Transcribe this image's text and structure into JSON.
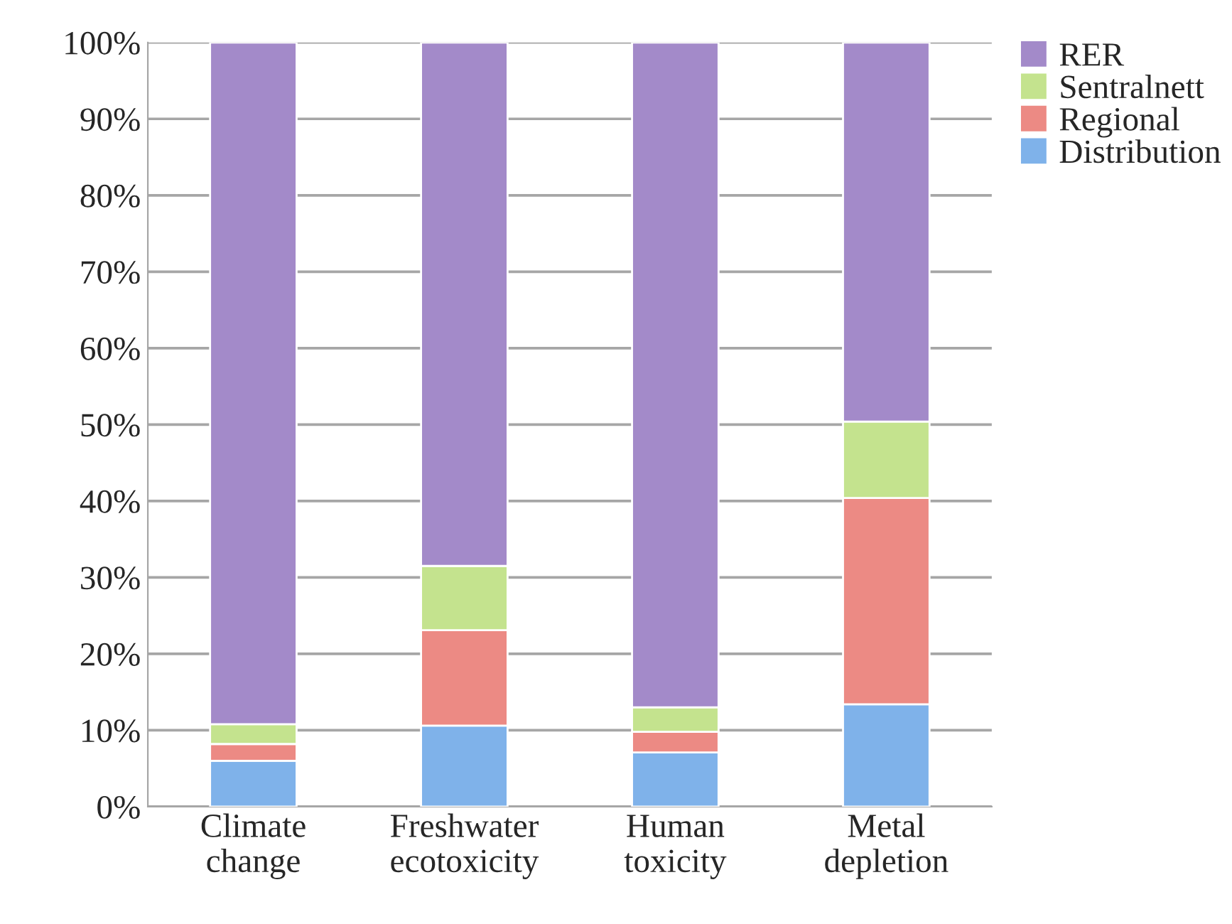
{
  "chart_data": {
    "type": "bar",
    "stacked": true,
    "categories": [
      "Climate\nchange",
      "Freshwater\necotoxicity",
      "Human\ntoxicity",
      "Metal\ndepletion"
    ],
    "series": [
      {
        "name": "Distribution",
        "color": "#7fb2ea",
        "values": [
          6.0,
          10.6,
          7.1,
          13.4
        ]
      },
      {
        "name": "Regional",
        "color": "#ec8a84",
        "values": [
          2.2,
          12.5,
          2.7,
          27.0
        ]
      },
      {
        "name": "Sentralnett",
        "color": "#c4e38e",
        "values": [
          2.6,
          8.4,
          3.2,
          10.0
        ]
      },
      {
        "name": "RER",
        "color": "#a38ac9",
        "values": [
          89.2,
          68.5,
          87.0,
          49.6
        ]
      }
    ],
    "ylim": [
      0,
      100
    ],
    "yticks": [
      {
        "value": 0,
        "label": "0%"
      },
      {
        "value": 10,
        "label": "10%"
      },
      {
        "value": 20,
        "label": "20%"
      },
      {
        "value": 30,
        "label": "30%"
      },
      {
        "value": 40,
        "label": "40%"
      },
      {
        "value": 50,
        "label": "50%"
      },
      {
        "value": 60,
        "label": "60%"
      },
      {
        "value": 70,
        "label": "70%"
      },
      {
        "value": 80,
        "label": "80%"
      },
      {
        "value": 90,
        "label": "90%"
      },
      {
        "value": 100,
        "label": "100%"
      }
    ],
    "grid": "y",
    "legend": "top right"
  }
}
